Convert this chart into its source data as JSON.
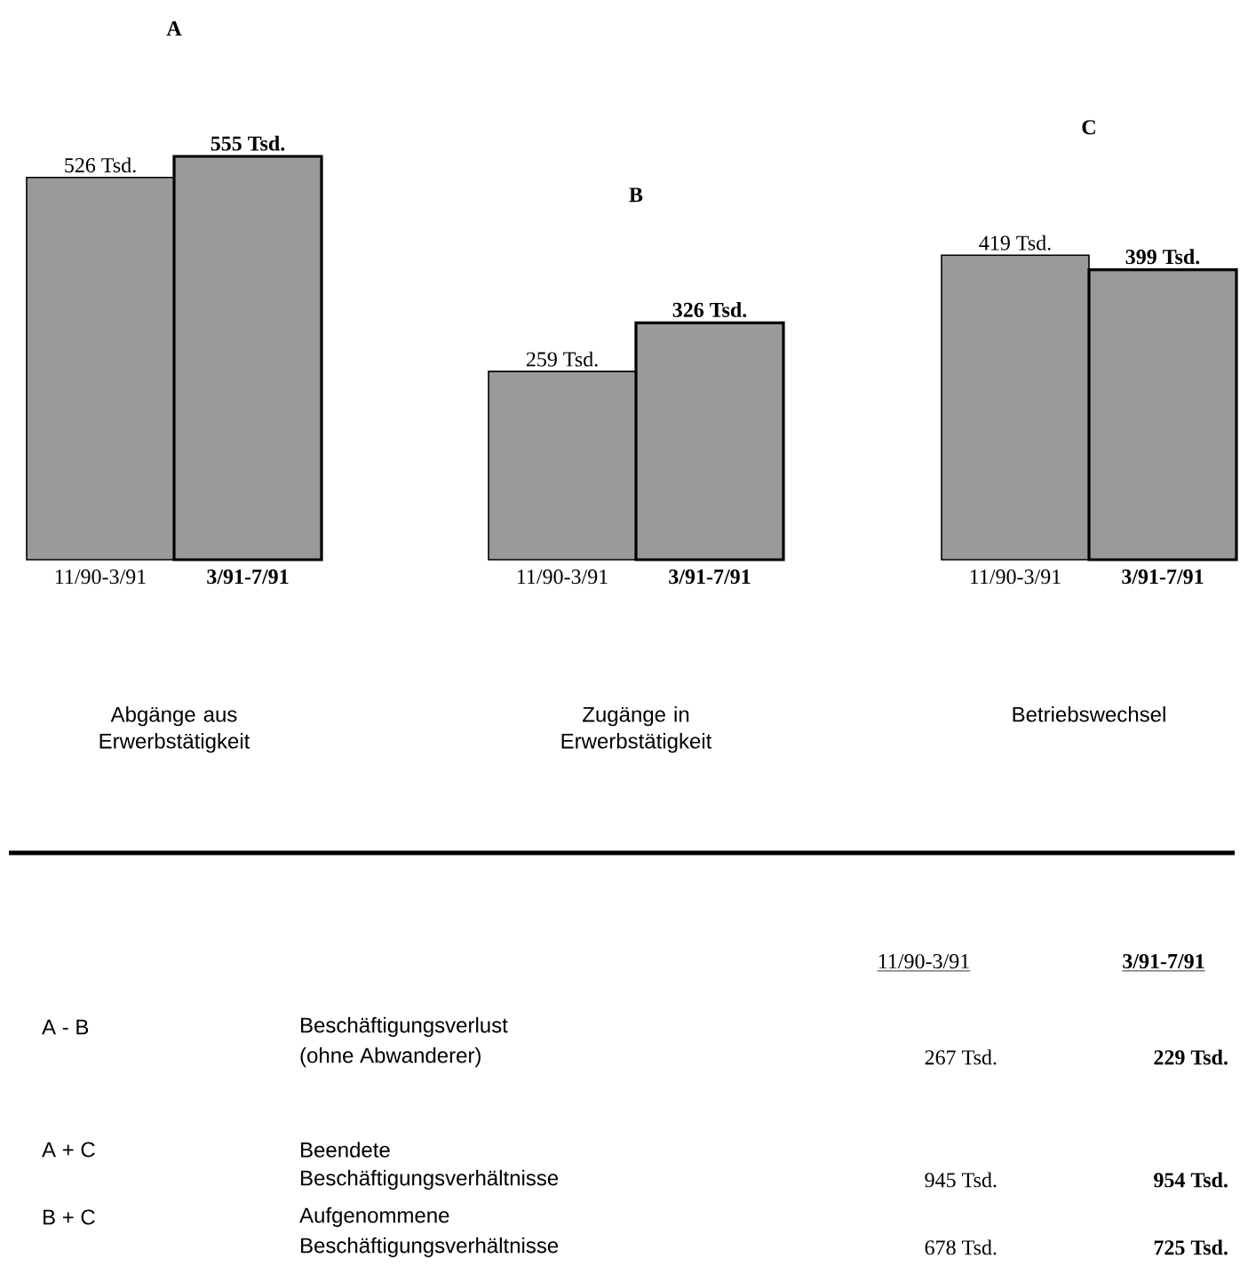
{
  "chart_data": [
    {
      "type": "bar",
      "title": "A",
      "categories": [
        "11/90-3/91",
        "3/91-7/91"
      ],
      "values": [
        526,
        555
      ],
      "value_labels": [
        "526 Tsd.",
        "555 Tsd."
      ],
      "xlabel": "Abgänge aus Erwerbstätigkeit",
      "color": "#9a9a9a"
    },
    {
      "type": "bar",
      "title": "B",
      "categories": [
        "11/90-3/91",
        "3/91-7/91"
      ],
      "values": [
        259,
        326
      ],
      "value_labels": [
        "259 Tsd.",
        "326 Tsd."
      ],
      "xlabel": "Zugänge in Erwerbstätigkeit",
      "color": "#9a9a9a"
    },
    {
      "type": "bar",
      "title": "C",
      "categories": [
        "11/90-3/91",
        "3/91-7/91"
      ],
      "values": [
        419,
        399
      ],
      "value_labels": [
        "419 Tsd.",
        "399 Tsd."
      ],
      "xlabel": "Betriebswechsel",
      "color": "#9a9a9a"
    },
    {
      "type": "other",
      "annotations": [
        "11/90-3/91",
        "3/91-7/91",
        "A - B",
        "Beschäftigungsverlust",
        "(ohne Abwanderer)",
        "267 Tsd.",
        "229 Tsd.",
        "A + C",
        "Beendete",
        "Beschäftigungsverhältnisse",
        "945 Tsd.",
        "954 Tsd.",
        "B + C",
        "Aufgenommene",
        "Beschäftigungsverhältnisse",
        "678 Tsd.",
        "725 Tsd."
      ]
    }
  ]
}
